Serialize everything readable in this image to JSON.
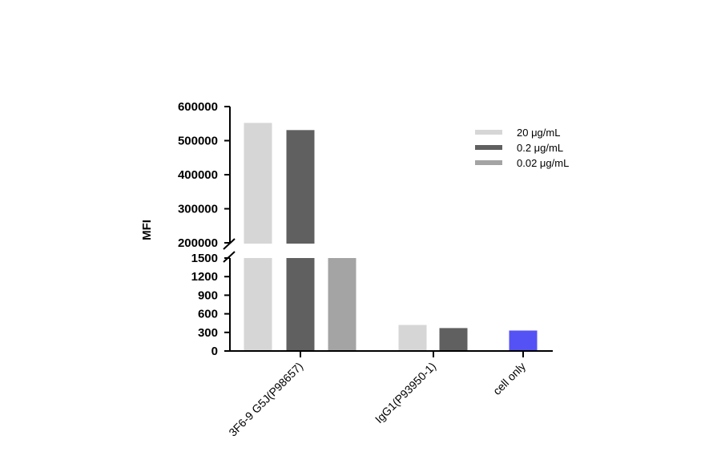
{
  "chart_data": {
    "type": "bar",
    "ylabel": "MFI",
    "y_axis_break": true,
    "upper_segment": {
      "ylim": [
        200000,
        600000
      ],
      "ticks": [
        "200000",
        "300000",
        "400000",
        "500000",
        "600000"
      ]
    },
    "lower_segment": {
      "ylim": [
        0,
        1500
      ],
      "ticks": [
        "0",
        "300",
        "600",
        "900",
        "1200",
        "1500"
      ]
    },
    "categories": [
      "3F6-9 G5J(P98657)",
      "IgG1(P93950-1)",
      "cell only"
    ],
    "series": [
      {
        "name": "20 μg/mL",
        "color": "#d6d6d6",
        "values": [
          552000,
          420,
          null
        ]
      },
      {
        "name": "0.2 μg/mL",
        "color": "#606060",
        "values": [
          531000,
          370,
          null
        ]
      },
      {
        "name": "0.02 μg/mL",
        "color": "#a4a4a4",
        "values": [
          1500,
          null,
          null
        ]
      }
    ],
    "cell_only": {
      "value": 330,
      "color": "#5552f5"
    },
    "legend_position": "top-right",
    "grid": false
  }
}
